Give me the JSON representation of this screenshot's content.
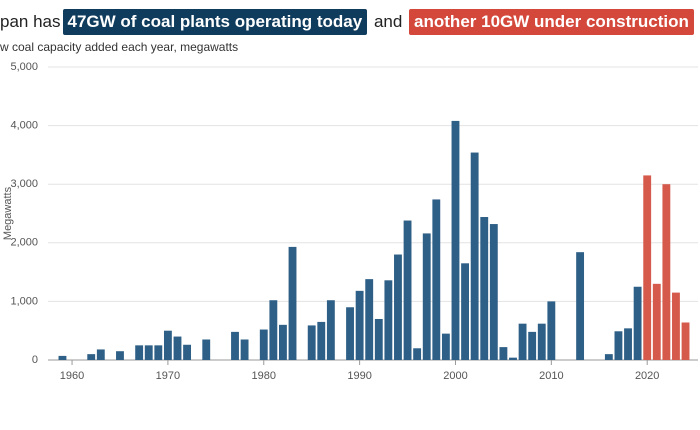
{
  "title_parts": [
    "pan has",
    "47GW of coal plants operating today",
    "and",
    "another 10GW under construction"
  ],
  "chart_data": {
    "type": "bar",
    "subtitle": "w coal capacity added each year, megawatts",
    "y_label": "Megawatts",
    "x": [
      1959,
      1962,
      1963,
      1965,
      1967,
      1968,
      1969,
      1970,
      1971,
      1972,
      1974,
      1977,
      1978,
      1980,
      1981,
      1982,
      1983,
      1985,
      1986,
      1987,
      1989,
      1990,
      1991,
      1992,
      1993,
      1994,
      1995,
      1996,
      1997,
      1998,
      1999,
      2000,
      2001,
      2002,
      2003,
      2004,
      2005,
      2006,
      2007,
      2008,
      2009,
      2010,
      2013,
      2016,
      2017,
      2018,
      2019,
      2020,
      2021,
      2022,
      2023,
      2024
    ],
    "values": [
      70,
      100,
      180,
      150,
      250,
      250,
      250,
      500,
      400,
      260,
      350,
      480,
      350,
      520,
      1020,
      600,
      1930,
      590,
      650,
      1020,
      900,
      1180,
      1380,
      700,
      1360,
      1800,
      2380,
      200,
      2160,
      2740,
      450,
      4080,
      1650,
      3540,
      2440,
      2320,
      220,
      40,
      620,
      480,
      620,
      1000,
      1840,
      100,
      490,
      540,
      1250,
      3150,
      1300,
      3000,
      1150,
      640
    ],
    "colors": [
      "#2e5f86",
      "#2e5f86",
      "#2e5f86",
      "#2e5f86",
      "#2e5f86",
      "#2e5f86",
      "#2e5f86",
      "#2e5f86",
      "#2e5f86",
      "#2e5f86",
      "#2e5f86",
      "#2e5f86",
      "#2e5f86",
      "#2e5f86",
      "#2e5f86",
      "#2e5f86",
      "#2e5f86",
      "#2e5f86",
      "#2e5f86",
      "#2e5f86",
      "#2e5f86",
      "#2e5f86",
      "#2e5f86",
      "#2e5f86",
      "#2e5f86",
      "#2e5f86",
      "#2e5f86",
      "#2e5f86",
      "#2e5f86",
      "#2e5f86",
      "#2e5f86",
      "#2e5f86",
      "#2e5f86",
      "#2e5f86",
      "#2e5f86",
      "#2e5f86",
      "#2e5f86",
      "#2e5f86",
      "#2e5f86",
      "#2e5f86",
      "#2e5f86",
      "#2e5f86",
      "#2e5f86",
      "#2e5f86",
      "#2e5f86",
      "#2e5f86",
      "#2e5f86",
      "#d65a4c",
      "#d65a4c",
      "#d65a4c",
      "#d65a4c",
      "#d65a4c"
    ],
    "xlim": [
      1957.7,
      2025.3
    ],
    "xticks": [
      1960,
      1970,
      1980,
      1990,
      2000,
      2010,
      2020
    ],
    "ylim": [
      0,
      5000
    ],
    "yticks": [
      0,
      {
        "value": 1000,
        "label": "1,000"
      },
      {
        "value": 2000,
        "label": "2,000"
      },
      {
        "value": 3000,
        "label": "3,000"
      },
      {
        "value": 4000,
        "label": "4,000"
      },
      {
        "value": 5000,
        "label": "5,000"
      }
    ],
    "grid": true
  }
}
